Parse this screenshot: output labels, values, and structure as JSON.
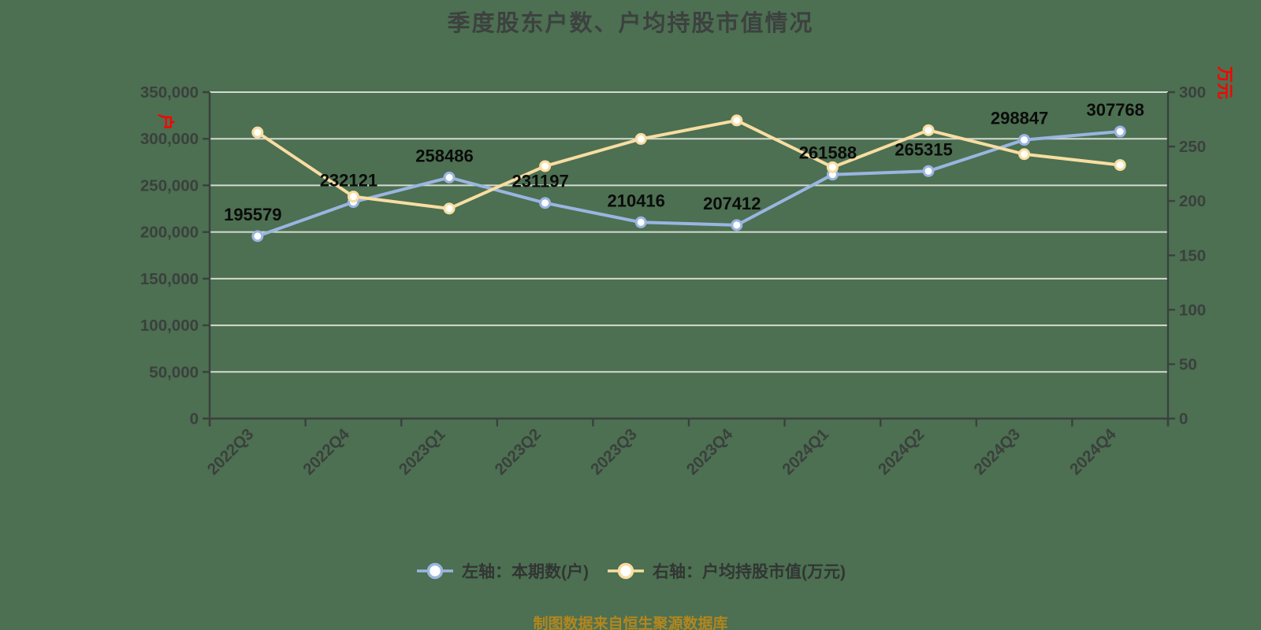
{
  "title": "季度股东户数、户均持股市值情况",
  "caption": "制图数据来自恒生聚源数据库",
  "chart_data": {
    "type": "line",
    "title": "季度股东户数、户均持股市值情况",
    "categories": [
      "2022Q3",
      "2022Q4",
      "2023Q1",
      "2023Q2",
      "2023Q3",
      "2023Q4",
      "2024Q1",
      "2024Q2",
      "2024Q3",
      "2024Q4"
    ],
    "series": [
      {
        "name": "左轴：本期数(户)",
        "yaxis": "left",
        "color": "#9ab5e1",
        "show_value_labels": true,
        "values": [
          195579,
          232121,
          258486,
          231197,
          210416,
          207412,
          261588,
          265315,
          298847,
          307768
        ]
      },
      {
        "name": "右轴：户均持股市值(万元)",
        "yaxis": "right",
        "color": "#f8dda2",
        "show_value_labels": false,
        "values": [
          263,
          204,
          193,
          232,
          257,
          274,
          231,
          265,
          243,
          233
        ]
      }
    ],
    "left_axis": {
      "title": "户",
      "min": 0,
      "max": 350000,
      "step": 50000,
      "tick_labels": [
        "350,000",
        "300,000",
        "250,000",
        "200,000",
        "150,000",
        "100,000",
        "50,000",
        "0"
      ]
    },
    "right_axis": {
      "title": "万元",
      "min": 0,
      "max": 300,
      "step": 50,
      "tick_labels": [
        "300",
        "250",
        "200",
        "150",
        "100",
        "50",
        "0"
      ]
    },
    "grid": true,
    "legend_position": "bottom"
  },
  "colors": {
    "background": "#4c7051",
    "grid": "#d5dad1",
    "axis": "#3b403e",
    "tick_text": "#3b403e",
    "value_label": "#0b0b0b",
    "axis_unit_red": "#fb0000",
    "caption": "#b3861e"
  }
}
